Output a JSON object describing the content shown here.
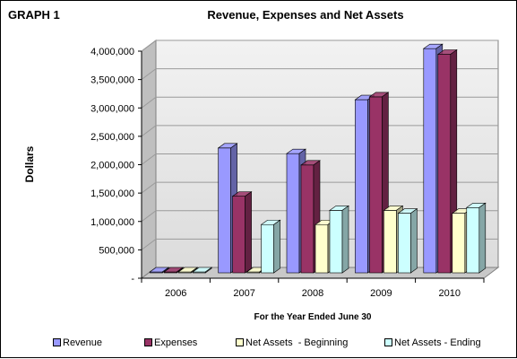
{
  "header": {
    "graph_label": "GRAPH 1"
  },
  "chart_data": {
    "type": "bar",
    "title": "Revenue, Expenses and Net Assets",
    "xlabel": "For the Year Ended June 30",
    "ylabel": "Dollars",
    "ylim": [
      0,
      4000000
    ],
    "y_ticks": [
      {
        "value": 0,
        "label": "-"
      },
      {
        "value": 500000,
        "label": "500,000"
      },
      {
        "value": 1000000,
        "label": "1,000,000"
      },
      {
        "value": 1500000,
        "label": "1,500,000"
      },
      {
        "value": 2000000,
        "label": "2,000,000"
      },
      {
        "value": 2500000,
        "label": "2,500,000"
      },
      {
        "value": 3000000,
        "label": "3,000,000"
      },
      {
        "value": 3500000,
        "label": "3,500,000"
      },
      {
        "value": 4000000,
        "label": "4,000,000"
      }
    ],
    "categories": [
      "2006",
      "2007",
      "2008",
      "2009",
      "2010"
    ],
    "grid": true,
    "legend_position": "bottom",
    "series": [
      {
        "name": "Revenue",
        "color": "#9999FF",
        "values": [
          0,
          2200000,
          2100000,
          3050000,
          3950000
        ]
      },
      {
        "name": "Expenses",
        "color": "#993366",
        "values": [
          0,
          1350000,
          1900000,
          3100000,
          3850000
        ]
      },
      {
        "name": "Net Assets  - Beginning",
        "color": "#FFFFCC",
        "values": [
          0,
          0,
          850000,
          1100000,
          1050000
        ]
      },
      {
        "name": "Net Assets - Ending",
        "color": "#CCFFFF",
        "values": [
          0,
          850000,
          1100000,
          1050000,
          1150000
        ]
      }
    ]
  }
}
